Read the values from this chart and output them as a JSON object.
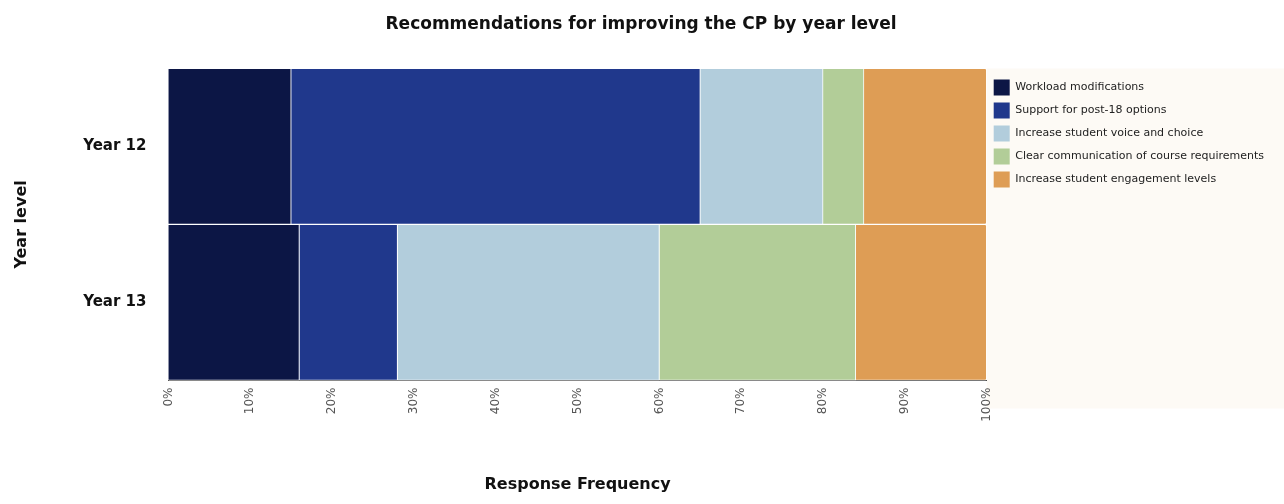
{
  "chart_data": {
    "type": "bar",
    "orientation": "horizontal",
    "stacked": true,
    "title": "Recommendations for improving the CP by year level",
    "xlabel": "Response Frequency",
    "ylabel": "Year level",
    "categories": [
      "Year 12",
      "Year 13"
    ],
    "series": [
      {
        "name": "Workload modifications",
        "color": "#0c1645",
        "values": [
          15,
          16
        ]
      },
      {
        "name": "Support for post-18 options",
        "color": "#20388c",
        "values": [
          50,
          12
        ]
      },
      {
        "name": "Increase student voice and choice",
        "color": "#b2cddc",
        "values": [
          15,
          32
        ]
      },
      {
        "name": "Clear communication of course requirements",
        "color": "#b2cd98",
        "values": [
          5,
          24
        ]
      },
      {
        "name": "Increase student engagement levels",
        "color": "#de9d55",
        "values": [
          15,
          16
        ]
      }
    ],
    "xlim": [
      0,
      100
    ],
    "xticks": [
      {
        "value": 0,
        "label": "0%"
      },
      {
        "value": 10,
        "label": "10%"
      },
      {
        "value": 20,
        "label": "20%"
      },
      {
        "value": 30,
        "label": "30%"
      },
      {
        "value": 40,
        "label": "40%"
      },
      {
        "value": 50,
        "label": "50%"
      },
      {
        "value": 60,
        "label": "60%"
      },
      {
        "value": 70,
        "label": "70%"
      },
      {
        "value": 80,
        "label": "80%"
      },
      {
        "value": 90,
        "label": "90%"
      },
      {
        "value": 100,
        "label": "100%"
      }
    ],
    "legend": "right",
    "grid": false
  }
}
